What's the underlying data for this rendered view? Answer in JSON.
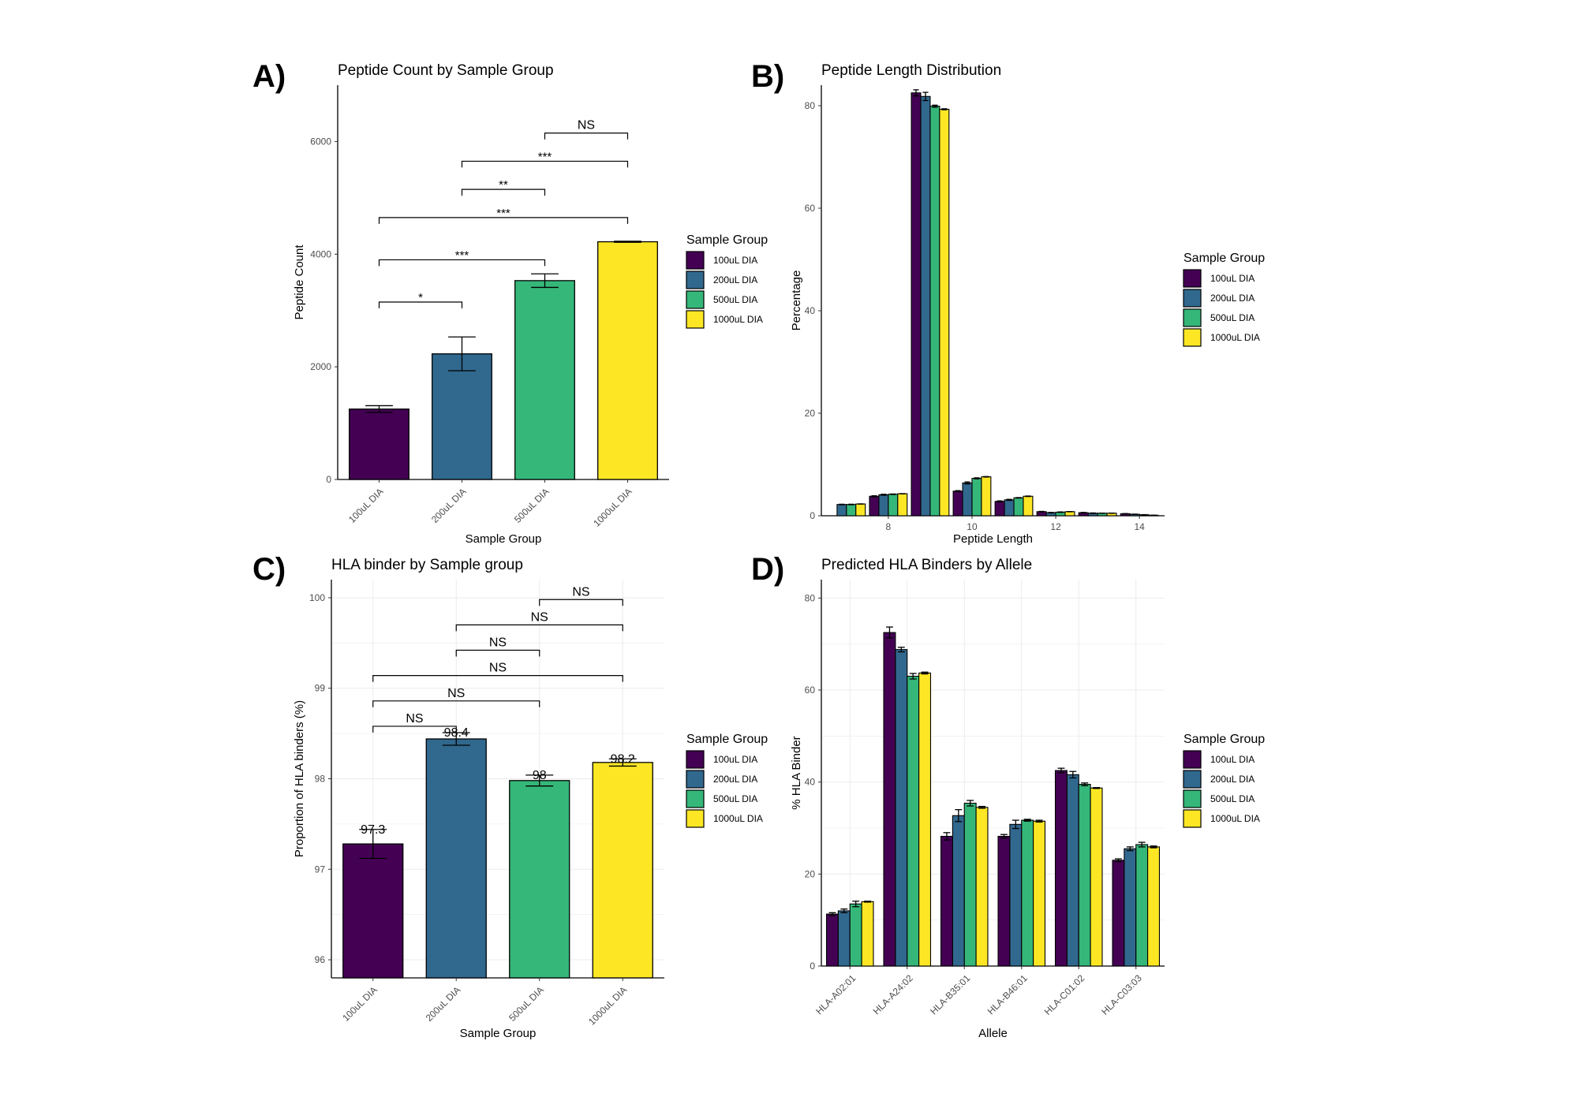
{
  "colors": {
    "100uL DIA": "#440154",
    "200uL DIA": "#31688E",
    "500uL DIA": "#35B779",
    "1000uL DIA": "#FDE725",
    "grid": "#ebebeb"
  },
  "legend_title": "Sample Group",
  "groups": [
    "100uL DIA",
    "200uL DIA",
    "500uL DIA",
    "1000uL DIA"
  ],
  "chart_data": [
    {
      "panel": "A)",
      "type": "bar",
      "title": "Peptide Count by Sample Group",
      "xlabel": "Sample Group",
      "ylabel": "Peptide Count",
      "categories": [
        "100uL DIA",
        "200uL DIA",
        "500uL DIA",
        "1000uL DIA"
      ],
      "values": [
        1250,
        2230,
        3530,
        4220
      ],
      "errors": [
        60,
        300,
        120,
        10
      ],
      "ylim": [
        0,
        7000
      ],
      "yticks": [
        0,
        2000,
        4000,
        6000
      ],
      "grid": false,
      "legend": "right",
      "significance": [
        {
          "from": 0,
          "to": 1,
          "y": 3150,
          "label": "*"
        },
        {
          "from": 0,
          "to": 2,
          "y": 3900,
          "label": "***"
        },
        {
          "from": 0,
          "to": 3,
          "y": 4650,
          "label": "***"
        },
        {
          "from": 1,
          "to": 2,
          "y": 5150,
          "label": "**"
        },
        {
          "from": 1,
          "to": 3,
          "y": 5650,
          "label": "***"
        },
        {
          "from": 2,
          "to": 3,
          "y": 6150,
          "label": "NS"
        }
      ]
    },
    {
      "panel": "B)",
      "type": "bar",
      "title": "Peptide Length Distribution",
      "xlabel": "Peptide Length",
      "ylabel": "Percentage",
      "categories": [
        7,
        8,
        9,
        10,
        11,
        12,
        13,
        14
      ],
      "series": [
        {
          "name": "100uL DIA",
          "values": [
            0,
            3.8,
            82.5,
            4.8,
            2.8,
            0.8,
            0.6,
            0.4
          ],
          "errors": [
            0,
            0.1,
            0.6,
            0.1,
            0.1,
            0.05,
            0.05,
            0.02
          ]
        },
        {
          "name": "200uL DIA",
          "values": [
            2.2,
            4.1,
            81.8,
            6.4,
            3.1,
            0.6,
            0.5,
            0.3
          ],
          "errors": [
            0.05,
            0.1,
            0.8,
            0.2,
            0.1,
            0.05,
            0.05,
            0.02
          ]
        },
        {
          "name": "500uL DIA",
          "values": [
            2.2,
            4.2,
            79.9,
            7.3,
            3.5,
            0.7,
            0.5,
            0.2
          ],
          "errors": [
            0.05,
            0.05,
            0.2,
            0.1,
            0.05,
            0.05,
            0.02,
            0.02
          ]
        },
        {
          "name": "1000uL DIA",
          "values": [
            2.3,
            4.3,
            79.3,
            7.6,
            3.8,
            0.8,
            0.5,
            0.1
          ],
          "errors": [
            0.02,
            0.02,
            0.1,
            0.05,
            0.05,
            0.02,
            0.02,
            0.01
          ]
        }
      ],
      "xticks": [
        8,
        10,
        12,
        14
      ],
      "ylim": [
        0,
        84
      ],
      "yticks": [
        0,
        20,
        40,
        60,
        80
      ],
      "grid": false,
      "legend": "right"
    },
    {
      "panel": "C)",
      "type": "bar",
      "title": "HLA binder by Sample group",
      "xlabel": "Sample Group",
      "ylabel": "Proportion of HLA binders (%)",
      "categories": [
        "100uL DIA",
        "200uL DIA",
        "500uL DIA",
        "1000uL DIA"
      ],
      "values": [
        97.28,
        98.44,
        97.98,
        98.18
      ],
      "errors": [
        0.16,
        0.07,
        0.06,
        0.04
      ],
      "data_labels": [
        "97.3",
        "98.4",
        "98",
        "98.2"
      ],
      "ylim": [
        95.8,
        100.2
      ],
      "yticks": [
        96,
        97,
        98,
        99,
        100
      ],
      "grid": true,
      "legend": "right",
      "significance": [
        {
          "from": 0,
          "to": 1,
          "y": 98.58,
          "label": "NS"
        },
        {
          "from": 0,
          "to": 2,
          "y": 98.86,
          "label": "NS"
        },
        {
          "from": 0,
          "to": 3,
          "y": 99.14,
          "label": "NS"
        },
        {
          "from": 1,
          "to": 2,
          "y": 99.42,
          "label": "NS"
        },
        {
          "from": 1,
          "to": 3,
          "y": 99.7,
          "label": "NS"
        },
        {
          "from": 2,
          "to": 3,
          "y": 99.98,
          "label": "NS"
        }
      ]
    },
    {
      "panel": "D)",
      "type": "bar",
      "title": "Predicted HLA Binders by Allele",
      "xlabel": "Allele",
      "ylabel": "% HLA Binder",
      "categories": [
        "HLA-A02:01",
        "HLA-A24:02",
        "HLA-B35:01",
        "HLA-B46:01",
        "HLA-C01:02",
        "HLA-C03:03"
      ],
      "series": [
        {
          "name": "100uL DIA",
          "values": [
            11.3,
            72.5,
            28.2,
            28.2,
            42.5,
            23.0
          ],
          "errors": [
            0.3,
            1.2,
            0.8,
            0.4,
            0.5,
            0.3
          ]
        },
        {
          "name": "200uL DIA",
          "values": [
            12.0,
            68.8,
            32.7,
            30.8,
            41.6,
            25.5
          ],
          "errors": [
            0.4,
            0.5,
            1.3,
            0.9,
            0.7,
            0.4
          ]
        },
        {
          "name": "500uL DIA",
          "values": [
            13.5,
            63.0,
            35.4,
            31.7,
            39.5,
            26.4
          ],
          "errors": [
            0.6,
            0.6,
            0.6,
            0.2,
            0.3,
            0.5
          ]
        },
        {
          "name": "1000uL DIA",
          "values": [
            14.0,
            63.7,
            34.5,
            31.5,
            38.7,
            25.9
          ],
          "errors": [
            0.1,
            0.2,
            0.2,
            0.2,
            0.1,
            0.2
          ]
        }
      ],
      "ylim": [
        0,
        84
      ],
      "yticks": [
        0,
        20,
        40,
        60,
        80
      ],
      "grid": true,
      "legend": "right"
    }
  ]
}
